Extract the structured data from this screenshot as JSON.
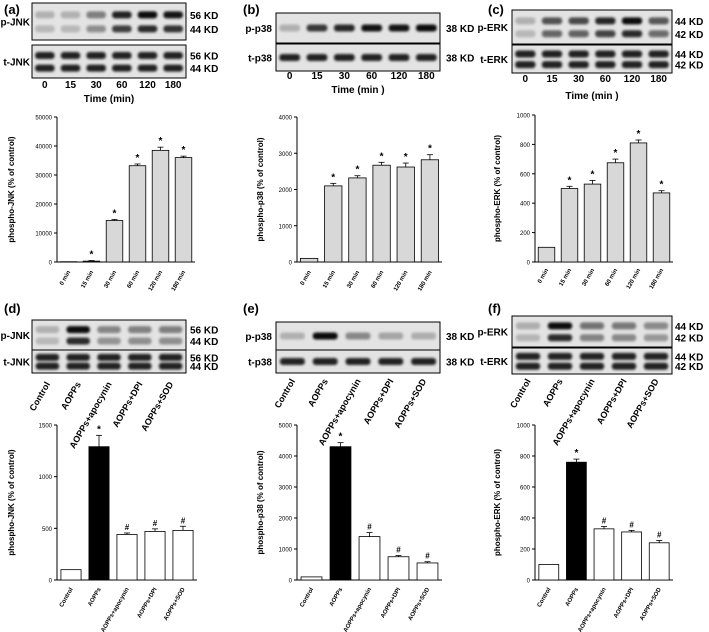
{
  "panels": [
    {
      "letter": "(a)",
      "blot": {
        "rows": [
          {
            "label": "p-JNK",
            "kd": [
              "56 KD",
              "44 KD"
            ]
          },
          {
            "label": "t-JNK",
            "kd": [
              "56 KD",
              "44 KD"
            ]
          }
        ],
        "lanes": [
          "0",
          "15",
          "30",
          "60",
          "120",
          "180"
        ],
        "xlabel": "Time (min)"
      },
      "chart_data": {
        "type": "bar",
        "ylabel": "phospho-JNK (% of control)",
        "ylim": [
          0,
          50000
        ],
        "yticks": [
          0,
          10000,
          20000,
          30000,
          40000,
          50000
        ],
        "categories": [
          "0 min",
          "15 min",
          "30 min",
          "60 min",
          "120 min",
          "180 min"
        ],
        "values": [
          100,
          300,
          14300,
          33200,
          38500,
          36000
        ],
        "errors": [
          0,
          200,
          400,
          600,
          1100,
          500
        ],
        "marks": [
          "",
          "*",
          "*",
          "*",
          "*",
          "*"
        ],
        "bar_colors": [
          "#d8d8d8",
          "#d8d8d8",
          "#d8d8d8",
          "#d8d8d8",
          "#d8d8d8",
          "#d8d8d8"
        ]
      }
    },
    {
      "letter": "(b)",
      "blot": {
        "rows": [
          {
            "label": "p-p38",
            "kd": [
              "38 KD"
            ]
          },
          {
            "label": "t-p38",
            "kd": [
              "38 KD"
            ]
          }
        ],
        "lanes": [
          "0",
          "15",
          "30",
          "60",
          "120",
          "180"
        ],
        "xlabel": "Time (min )"
      },
      "chart_data": {
        "type": "bar",
        "ylabel": "phospho-p38 (% of control)",
        "ylim": [
          0,
          4000
        ],
        "yticks": [
          0,
          1000,
          2000,
          3000,
          4000
        ],
        "categories": [
          "0 min",
          "15 min",
          "30 min",
          "60 min",
          "120 min",
          "180 min"
        ],
        "values": [
          100,
          2100,
          2320,
          2670,
          2620,
          2820
        ],
        "errors": [
          0,
          70,
          60,
          80,
          110,
          140
        ],
        "marks": [
          "",
          "*",
          "*",
          "*",
          "*",
          "*"
        ],
        "bar_colors": [
          "#d8d8d8",
          "#d8d8d8",
          "#d8d8d8",
          "#d8d8d8",
          "#d8d8d8",
          "#d8d8d8"
        ]
      }
    },
    {
      "letter": "(c)",
      "blot": {
        "rows": [
          {
            "label": "p-ERK",
            "kd": [
              "44 KD",
              "42 KD"
            ]
          },
          {
            "label": "t-ERK",
            "kd": [
              "44 KD",
              "42 KD"
            ]
          }
        ],
        "lanes": [
          "0",
          "15",
          "30",
          "60",
          "120",
          "180"
        ],
        "xlabel": "Time (min )"
      },
      "chart_data": {
        "type": "bar",
        "ylabel": "phospho-ERK (% of control)",
        "ylim": [
          0,
          1000
        ],
        "yticks": [
          0,
          200,
          400,
          600,
          800,
          1000
        ],
        "categories": [
          "0 min",
          "15 min",
          "30 min",
          "60 min",
          "120 min",
          "180 min"
        ],
        "values": [
          100,
          500,
          530,
          675,
          810,
          470
        ],
        "errors": [
          0,
          15,
          25,
          25,
          20,
          15
        ],
        "marks": [
          "",
          "*",
          "*",
          "*",
          "*",
          "*"
        ],
        "bar_colors": [
          "#d8d8d8",
          "#d8d8d8",
          "#d8d8d8",
          "#d8d8d8",
          "#d8d8d8",
          "#d8d8d8"
        ]
      }
    },
    {
      "letter": "(d)",
      "blot": {
        "rows": [
          {
            "label": "p-JNK",
            "kd": [
              "56 KD",
              "44 KD"
            ]
          },
          {
            "label": "t-JNK",
            "kd": [
              "56 KD",
              "44 KD"
            ]
          }
        ],
        "lanes": [
          "Control",
          "AOPPs",
          "AOPPs+apocynin",
          "AOPPs+DPI",
          "AOPPs+SOD"
        ],
        "xlabel": ""
      },
      "chart_data": {
        "type": "bar",
        "ylabel": "phospho-JNK (% of control)",
        "ylim": [
          0,
          1500
        ],
        "yticks": [
          0,
          500,
          1000,
          1500
        ],
        "categories": [
          "Control",
          "AOPPs",
          "AOPPs+apocynin",
          "AOPPs+DPI",
          "AOPPs+SOD"
        ],
        "values": [
          100,
          1290,
          440,
          470,
          480
        ],
        "errors": [
          0,
          110,
          15,
          25,
          40
        ],
        "marks": [
          "",
          "*",
          "#",
          "#",
          "#"
        ],
        "bar_colors": [
          "#ffffff",
          "#000000",
          "#ffffff",
          "#ffffff",
          "#ffffff"
        ]
      }
    },
    {
      "letter": "(e)",
      "blot": {
        "rows": [
          {
            "label": "p-p38",
            "kd": [
              "38 KD"
            ]
          },
          {
            "label": "t-p38",
            "kd": [
              "38 KD"
            ]
          }
        ],
        "lanes": [
          "Control",
          "AOPPs",
          "AOPPs+apocynin",
          "AOPPs+DPI",
          "AOPPs+SOD"
        ],
        "xlabel": ""
      },
      "chart_data": {
        "type": "bar",
        "ylabel": "phospho-p38 (% of control)",
        "ylim": [
          0,
          5000
        ],
        "yticks": [
          0,
          1000,
          2000,
          3000,
          4000,
          5000
        ],
        "categories": [
          "Control",
          "AOPPs",
          "AOPPs+apocynin",
          "AOPPs+DPI",
          "AOPPs+SOD"
        ],
        "values": [
          100,
          4300,
          1400,
          750,
          550
        ],
        "errors": [
          0,
          130,
          130,
          40,
          40
        ],
        "marks": [
          "",
          "*",
          "#",
          "#",
          "#"
        ],
        "bar_colors": [
          "#ffffff",
          "#000000",
          "#ffffff",
          "#ffffff",
          "#ffffff"
        ]
      }
    },
    {
      "letter": "(f)",
      "blot": {
        "rows": [
          {
            "label": "p-ERK",
            "kd": [
              "44 KD",
              "42 KD"
            ]
          },
          {
            "label": "t-ERK",
            "kd": [
              "44 KD",
              "42 KD"
            ]
          }
        ],
        "lanes": [
          "Control",
          "AOPPs",
          "AOPPs+apocynin",
          "AOPPs+DPI",
          "AOPPs+SOD"
        ],
        "xlabel": ""
      },
      "chart_data": {
        "type": "bar",
        "ylabel": "phospho-ERK (% of control)",
        "ylim": [
          0,
          1000
        ],
        "yticks": [
          0,
          200,
          400,
          600,
          800,
          1000
        ],
        "categories": [
          "Control",
          "AOPPs",
          "AOPPs+apocynin",
          "AOPPs+DPI",
          "AOPPs+SOD"
        ],
        "values": [
          100,
          760,
          330,
          310,
          240
        ],
        "errors": [
          0,
          20,
          15,
          10,
          15
        ],
        "marks": [
          "",
          "*",
          "#",
          "#",
          "#"
        ],
        "bar_colors": [
          "#ffffff",
          "#000000",
          "#ffffff",
          "#ffffff",
          "#ffffff"
        ]
      }
    }
  ]
}
